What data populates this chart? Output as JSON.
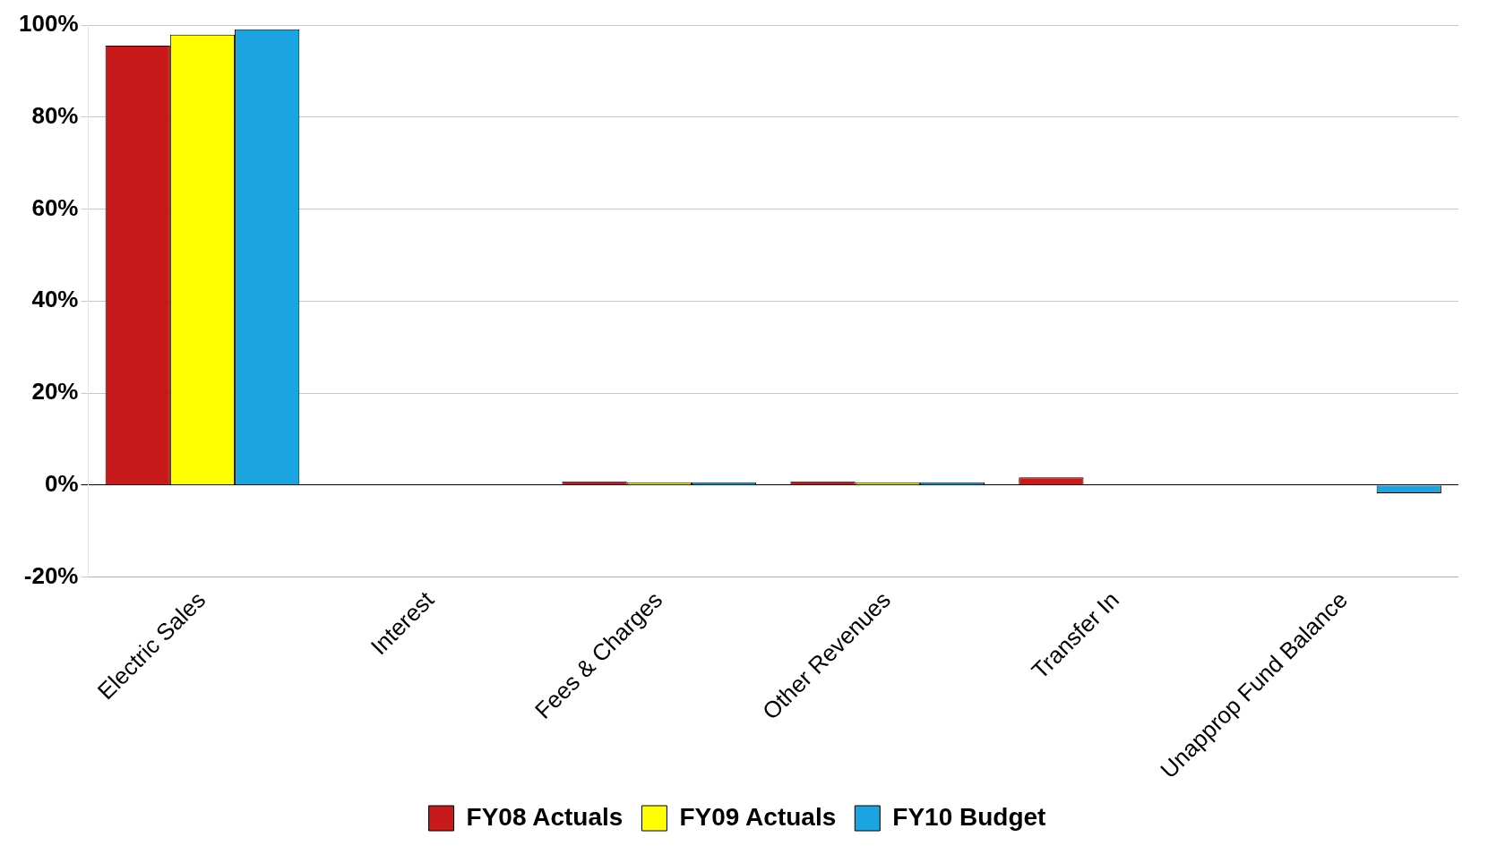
{
  "chart_data": {
    "type": "bar",
    "categories": [
      "Electric Sales",
      "Interest",
      "Fees & Charges",
      "Other Revenues",
      "Transfer In",
      "Unapprop Fund Balance"
    ],
    "series": [
      {
        "name": "FY08 Actuals",
        "color": "#c81a1a",
        "values": [
          95.5,
          0,
          0.8,
          0.8,
          1.7,
          0
        ]
      },
      {
        "name": "FY09 Actuals",
        "color": "#ffff00",
        "values": [
          97.9,
          0,
          0.6,
          0.6,
          0,
          0
        ]
      },
      {
        "name": "FY10 Budget",
        "color": "#1ba5e0",
        "values": [
          99.1,
          0,
          0.6,
          0.6,
          0,
          -1.8
        ]
      }
    ],
    "ylim": [
      -20,
      100
    ],
    "yticks": [
      {
        "value": -20,
        "label": "-20%"
      },
      {
        "value": 0,
        "label": "0%"
      },
      {
        "value": 20,
        "label": "20%"
      },
      {
        "value": 40,
        "label": "40%"
      },
      {
        "value": 60,
        "label": "60%"
      },
      {
        "value": 80,
        "label": "80%"
      },
      {
        "value": 100,
        "label": "100%"
      }
    ],
    "grid": "y",
    "legend": "bottom"
  }
}
